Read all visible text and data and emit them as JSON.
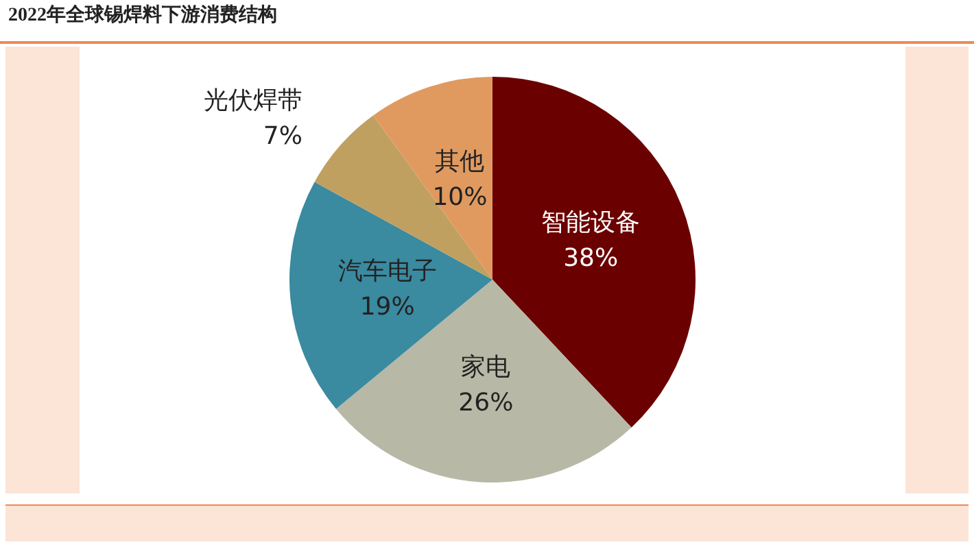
{
  "chart_data": {
    "type": "pie",
    "title": "2022年全球锡焊料下游消费结构",
    "categories": [
      "智能设备",
      "家电",
      "汽车电子",
      "光伏焊带",
      "其他"
    ],
    "values": [
      38,
      26,
      19,
      7,
      10
    ],
    "colors": [
      "#6b0000",
      "#b8b8a6",
      "#3a8aa0",
      "#c0a060",
      "#e09a60"
    ],
    "value_labels": [
      "38%",
      "26%",
      "19%",
      "7%",
      "10%"
    ],
    "legend": false
  }
}
